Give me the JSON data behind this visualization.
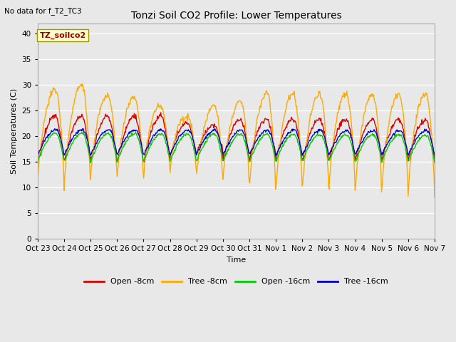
{
  "title": "Tonzi Soil CO2 Profile: Lower Temperatures",
  "subtitle": "No data for f_T2_TC3",
  "xlabel": "Time",
  "ylabel": "Soil Temperatures (C)",
  "ylim": [
    0,
    42
  ],
  "yticks": [
    0,
    5,
    10,
    15,
    20,
    25,
    30,
    35,
    40
  ],
  "background_color": "#e8e8e8",
  "annotation_box": "TZ_soilco2",
  "x_tick_labels": [
    "Oct 23",
    "Oct 24",
    "Oct 25",
    "Oct 26",
    "Oct 27",
    "Oct 28",
    "Oct 29",
    "Oct 30",
    "Oct 31",
    "Nov 1",
    "Nov 2",
    "Nov 3",
    "Nov 4",
    "Nov 5",
    "Nov 6",
    "Nov 7"
  ],
  "series_colors": {
    "open_8cm": "#dd0000",
    "tree_8cm": "#ffaa00",
    "open_16cm": "#00cc00",
    "tree_16cm": "#0000cc"
  },
  "series_labels": [
    "Open -8cm",
    "Tree -8cm",
    "Open -16cm",
    "Tree -16cm"
  ]
}
